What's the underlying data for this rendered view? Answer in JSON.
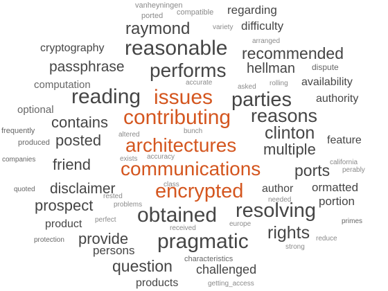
{
  "palette": {
    "primary": "#454545",
    "accent": "#d4561f",
    "light": "#666666",
    "faint": "#8a8a8a",
    "background": "#ffffff"
  },
  "words": [
    "vanheyningen",
    "ported",
    "compatible",
    "regarding",
    "raymond",
    "variety",
    "difficulty",
    "arranged",
    "cryptography",
    "reasonable",
    "recommended",
    "passphrase",
    "hellman",
    "dispute",
    "performs",
    "accurate",
    "computation",
    "asked",
    "rolling",
    "availability",
    "reading",
    "issues",
    "parties",
    "authority",
    "optional",
    "reasons",
    "contributing",
    "contains",
    "clinton",
    "frequently",
    "bunch",
    "altered",
    "posted",
    "architectures",
    "feature",
    "produced",
    "multiple",
    "accuracy",
    "exists",
    "companies",
    "friend",
    "communications",
    "california",
    "ports",
    "perably",
    "disclaimer",
    "ormatted",
    "class",
    "quoted",
    "encrypted",
    "author",
    "rested",
    "needed",
    "prospect",
    "problems",
    "portion",
    "resolving",
    "obtained",
    "primes",
    "perfect",
    "product",
    "europe",
    "received",
    "rights",
    "protection",
    "provide",
    "reduce",
    "pragmatic",
    "persons",
    "strong",
    "characteristics",
    "question",
    "challenged",
    "products",
    "getting_access"
  ]
}
